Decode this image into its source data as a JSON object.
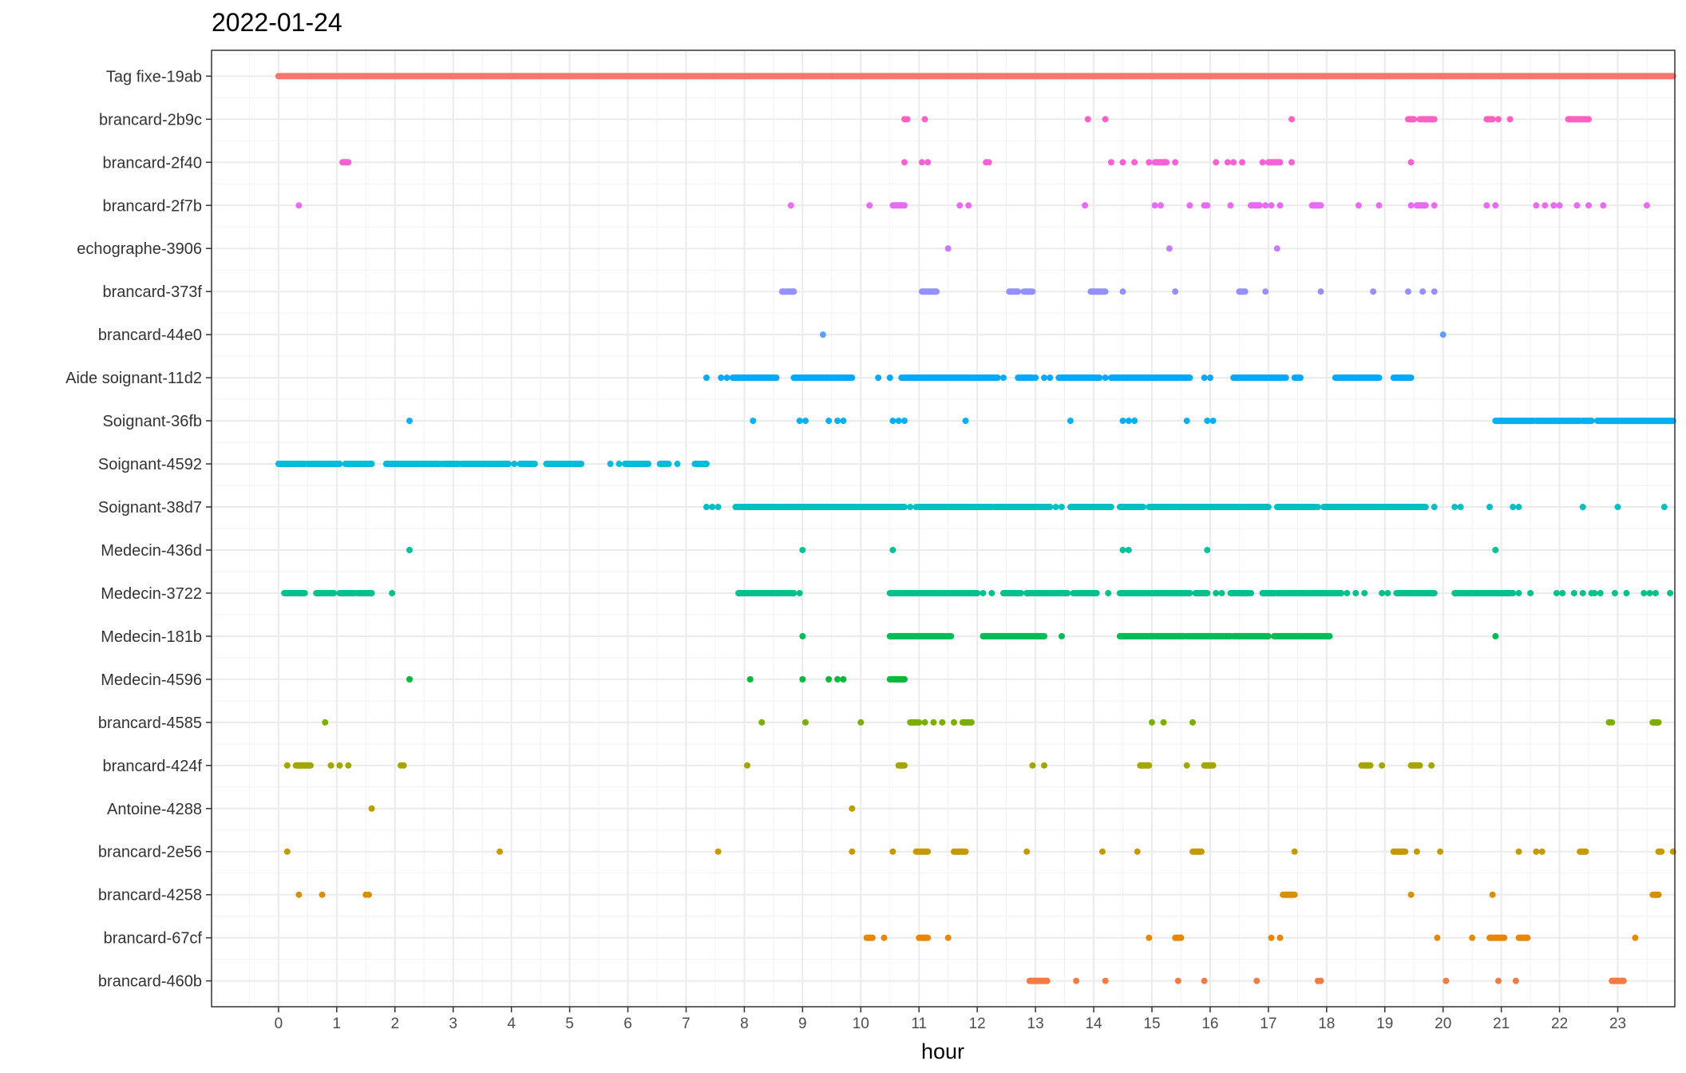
{
  "chart_data": {
    "type": "scatter",
    "title": "2022-01-24",
    "xlabel": "hour",
    "ylabel": "",
    "xlim": [
      -1.15,
      23.98
    ],
    "x_ticks": [
      "0",
      "1",
      "2",
      "3",
      "4",
      "5",
      "6",
      "7",
      "8",
      "9",
      "10",
      "11",
      "12",
      "13",
      "14",
      "15",
      "16",
      "17",
      "18",
      "19",
      "20",
      "21",
      "22",
      "23"
    ],
    "grid": true,
    "legend": "none",
    "series": [
      {
        "label": "Tag fixe-19ab",
        "color": "#F8766D",
        "segments": [
          [
            0.0,
            23.95
          ]
        ],
        "points": []
      },
      {
        "label": "brancard-2b9c",
        "color": "#FF61C3",
        "segments": [
          [
            19.4,
            19.5
          ],
          [
            19.6,
            19.85
          ],
          [
            20.75,
            20.85
          ],
          [
            22.15,
            22.5
          ]
        ],
        "points": [
          10.75,
          10.8,
          11.1,
          13.9,
          14.2,
          17.4,
          20.95,
          21.15
        ]
      },
      {
        "label": "brancard-2f40",
        "color": "#FB61D7",
        "segments": [
          [
            1.1,
            1.2
          ],
          [
            15.05,
            15.25
          ],
          [
            17.0,
            17.2
          ]
        ],
        "points": [
          10.75,
          11.05,
          11.15,
          12.15,
          12.2,
          14.3,
          14.5,
          14.7,
          14.95,
          15.4,
          16.1,
          16.3,
          16.4,
          16.55,
          16.9,
          17.4,
          19.45
        ]
      },
      {
        "label": "brancard-2f7b",
        "color": "#E76BF3",
        "segments": [
          [
            10.55,
            10.75
          ],
          [
            16.7,
            16.85
          ],
          [
            17.75,
            17.9
          ],
          [
            19.55,
            19.7
          ]
        ],
        "points": [
          0.35,
          8.8,
          10.15,
          11.7,
          11.85,
          13.85,
          15.05,
          15.15,
          15.65,
          15.9,
          15.95,
          16.35,
          16.95,
          17.05,
          17.2,
          18.55,
          18.9,
          19.45,
          19.85,
          20.75,
          20.9,
          21.6,
          21.75,
          21.9,
          22.0,
          22.3,
          22.5,
          22.75,
          23.5
        ]
      },
      {
        "label": "echographe-3906",
        "color": "#C77CFF",
        "segments": [],
        "points": [
          11.5,
          15.3,
          17.15
        ]
      },
      {
        "label": "brancard-373f",
        "color": "#9590FF",
        "segments": [
          [
            8.65,
            8.85
          ],
          [
            11.05,
            11.3
          ],
          [
            12.55,
            12.7
          ],
          [
            12.8,
            12.95
          ],
          [
            13.95,
            14.2
          ],
          [
            16.5,
            16.6
          ]
        ],
        "points": [
          14.5,
          15.4,
          16.95,
          17.9,
          18.8,
          19.4,
          19.65,
          19.85
        ]
      },
      {
        "label": "brancard-44e0",
        "color": "#619CFF",
        "segments": [],
        "points": [
          9.35,
          20.0
        ]
      },
      {
        "label": "Aide soignant-11d2",
        "color": "#00A9FF",
        "segments": [
          [
            7.8,
            8.55
          ],
          [
            8.85,
            9.85
          ],
          [
            10.7,
            12.35
          ],
          [
            12.7,
            12.95
          ],
          [
            13.4,
            14.1
          ],
          [
            14.3,
            15.65
          ],
          [
            16.4,
            17.3
          ],
          [
            17.45,
            17.55
          ],
          [
            18.15,
            18.9
          ],
          [
            19.15,
            19.45
          ]
        ],
        "points": [
          7.35,
          7.6,
          7.7,
          10.3,
          10.5,
          12.45,
          13.0,
          13.15,
          13.25,
          14.2,
          15.9,
          16.0
        ]
      },
      {
        "label": "Soignant-36fb",
        "color": "#00B0F6",
        "segments": [
          [
            20.9,
            21.55
          ],
          [
            21.6,
            22.35
          ],
          [
            22.4,
            22.55
          ],
          [
            22.65,
            23.95
          ]
        ],
        "points": [
          2.25,
          8.15,
          8.95,
          9.05,
          9.45,
          9.6,
          9.7,
          10.55,
          10.65,
          10.75,
          11.8,
          13.6,
          14.5,
          14.6,
          14.7,
          15.6,
          15.95,
          16.05,
          21.55
        ]
      },
      {
        "label": "Soignant-4592",
        "color": "#00BBDB",
        "segments": [
          [
            0.0,
            0.45
          ],
          [
            0.5,
            1.05
          ],
          [
            1.15,
            1.6
          ],
          [
            1.85,
            2.75
          ],
          [
            2.85,
            3.1
          ],
          [
            3.15,
            3.95
          ],
          [
            4.15,
            4.4
          ],
          [
            4.6,
            5.2
          ],
          [
            5.95,
            6.35
          ],
          [
            6.55,
            6.7
          ],
          [
            7.15,
            7.35
          ]
        ],
        "points": [
          2.8,
          4.05,
          5.7,
          5.85,
          6.85
        ]
      },
      {
        "label": "Soignant-38d7",
        "color": "#00BFC4",
        "segments": [
          [
            7.85,
            10.75
          ],
          [
            11.0,
            12.25
          ],
          [
            12.3,
            13.25
          ],
          [
            13.6,
            14.3
          ],
          [
            14.45,
            14.85
          ],
          [
            14.95,
            17.0
          ],
          [
            17.15,
            17.8
          ],
          [
            17.95,
            19.7
          ]
        ],
        "points": [
          7.35,
          7.45,
          7.55,
          10.85,
          10.95,
          13.35,
          13.45,
          15.0,
          16.8,
          17.85,
          19.85,
          20.2,
          20.3,
          20.8,
          21.2,
          21.3,
          22.4,
          23.0,
          23.8
        ]
      },
      {
        "label": "Medecin-436d",
        "color": "#00C19A",
        "segments": [],
        "points": [
          2.25,
          9.0,
          10.55,
          14.5,
          14.6,
          15.95,
          20.9
        ]
      },
      {
        "label": "Medecin-3722",
        "color": "#00C08B",
        "segments": [
          [
            0.1,
            0.45
          ],
          [
            0.65,
            0.95
          ],
          [
            1.05,
            1.3
          ],
          [
            1.35,
            1.6
          ],
          [
            7.9,
            8.85
          ],
          [
            10.5,
            12.0
          ],
          [
            12.45,
            12.75
          ],
          [
            12.85,
            13.55
          ],
          [
            13.65,
            14.05
          ],
          [
            14.45,
            15.65
          ],
          [
            15.75,
            15.95
          ],
          [
            16.35,
            16.65
          ],
          [
            16.9,
            17.1
          ],
          [
            17.15,
            18.25
          ],
          [
            19.2,
            19.85
          ],
          [
            20.2,
            21.2
          ]
        ],
        "points": [
          1.95,
          8.95,
          12.1,
          12.25,
          13.75,
          14.25,
          15.2,
          16.1,
          16.2,
          16.7,
          18.35,
          18.5,
          18.65,
          18.95,
          19.05,
          21.3,
          21.5,
          21.95,
          22.05,
          22.25,
          22.4,
          22.55,
          22.6,
          22.7,
          22.95,
          23.15,
          23.45,
          23.55,
          23.65,
          23.9
        ]
      },
      {
        "label": "Medecin-181b",
        "color": "#00BC56",
        "segments": [
          [
            10.5,
            11.55
          ],
          [
            12.1,
            13.15
          ],
          [
            14.45,
            15.55
          ],
          [
            15.6,
            16.35
          ],
          [
            16.4,
            17.0
          ],
          [
            17.1,
            18.05
          ]
        ],
        "points": [
          9.0,
          13.45,
          20.9
        ]
      },
      {
        "label": "Medecin-4596",
        "color": "#00BA38",
        "segments": [
          [
            10.5,
            10.75
          ]
        ],
        "points": [
          2.25,
          8.1,
          9.0,
          9.45,
          9.6,
          9.7
        ]
      },
      {
        "label": "brancard-4585",
        "color": "#7CAE00",
        "segments": [
          [
            10.85,
            11.0
          ],
          [
            11.75,
            11.9
          ],
          [
            23.6,
            23.7
          ]
        ],
        "points": [
          0.8,
          8.3,
          9.05,
          10.0,
          11.1,
          11.25,
          11.4,
          11.6,
          15.0,
          15.2,
          15.7,
          22.85,
          22.9
        ]
      },
      {
        "label": "brancard-424f",
        "color": "#A3A500",
        "segments": [
          [
            0.3,
            0.55
          ],
          [
            10.65,
            10.75
          ],
          [
            14.8,
            14.95
          ],
          [
            18.6,
            18.75
          ],
          [
            19.45,
            19.6
          ],
          [
            15.9,
            16.05
          ]
        ],
        "points": [
          0.15,
          0.9,
          1.05,
          1.2,
          2.1,
          2.15,
          8.05,
          12.95,
          13.15,
          15.6,
          18.95,
          19.8
        ]
      },
      {
        "label": "Antoine-4288",
        "color": "#B79F00",
        "segments": [],
        "points": [
          1.6,
          9.85
        ]
      },
      {
        "label": "brancard-2e56",
        "color": "#C49A00",
        "segments": [
          [
            10.95,
            11.15
          ],
          [
            11.6,
            11.8
          ],
          [
            15.7,
            15.85
          ],
          [
            19.15,
            19.35
          ],
          [
            22.35,
            22.45
          ],
          [
            23.7,
            23.75
          ]
        ],
        "points": [
          0.15,
          3.8,
          7.55,
          9.85,
          10.55,
          12.85,
          14.15,
          14.75,
          17.45,
          19.55,
          19.95,
          21.3,
          21.6,
          21.7,
          23.95
        ]
      },
      {
        "label": "brancard-4258",
        "color": "#D89000",
        "segments": [
          [
            17.25,
            17.45
          ],
          [
            23.6,
            23.7
          ]
        ],
        "points": [
          0.35,
          0.75,
          1.5,
          1.55,
          19.45,
          20.85
        ]
      },
      {
        "label": "brancard-67cf",
        "color": "#E58700",
        "segments": [
          [
            10.1,
            10.2
          ],
          [
            11.0,
            11.15
          ],
          [
            15.4,
            15.5
          ],
          [
            20.8,
            21.05
          ],
          [
            21.3,
            21.45
          ]
        ],
        "points": [
          10.4,
          11.5,
          14.95,
          17.05,
          17.2,
          19.9,
          20.5,
          20.95,
          23.3
        ]
      },
      {
        "label": "brancard-460b",
        "color": "#F07C44",
        "segments": [
          [
            12.9,
            13.2
          ],
          [
            22.9,
            23.1
          ]
        ],
        "points": [
          13.7,
          14.2,
          15.45,
          15.9,
          16.8,
          17.85,
          17.9,
          20.05,
          20.95,
          21.25
        ]
      }
    ]
  }
}
